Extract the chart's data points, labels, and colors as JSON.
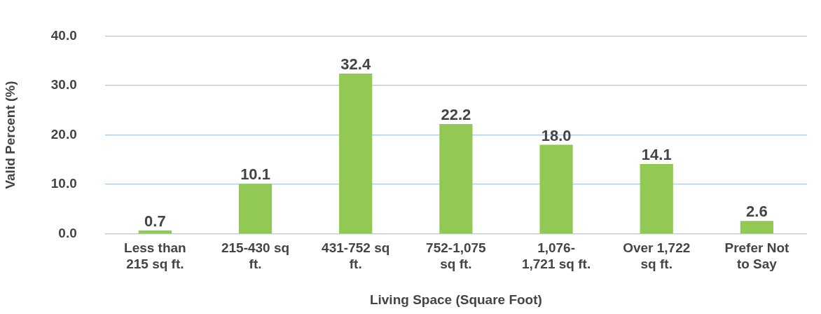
{
  "chart_data": {
    "type": "bar",
    "xlabel": "Living Space (Square Foot)",
    "ylabel": "Valid Percent (%)",
    "categories": [
      "Less than 215 sq ft.",
      "215-430 sq ft.",
      "431-752 sq ft.",
      "752-1,075 sq ft.",
      "1,076-1,721 sq ft.",
      "Over 1,722 sq ft.",
      "Prefer Not to Say"
    ],
    "values": [
      0.7,
      10.1,
      32.4,
      22.2,
      18.0,
      14.1,
      2.6
    ],
    "value_labels": [
      "0.7",
      "10.1",
      "32.4",
      "22.2",
      "18.0",
      "14.1",
      "2.6"
    ],
    "color": "#92c954",
    "ylim": [
      0,
      40
    ],
    "yticks": [
      {
        "value": 0,
        "label": "0.0"
      },
      {
        "value": 10,
        "label": "10.0"
      },
      {
        "value": 20,
        "label": "20.0"
      },
      {
        "value": 30,
        "label": "30.0"
      },
      {
        "value": 40,
        "label": "40.0"
      }
    ],
    "grid": "y"
  }
}
